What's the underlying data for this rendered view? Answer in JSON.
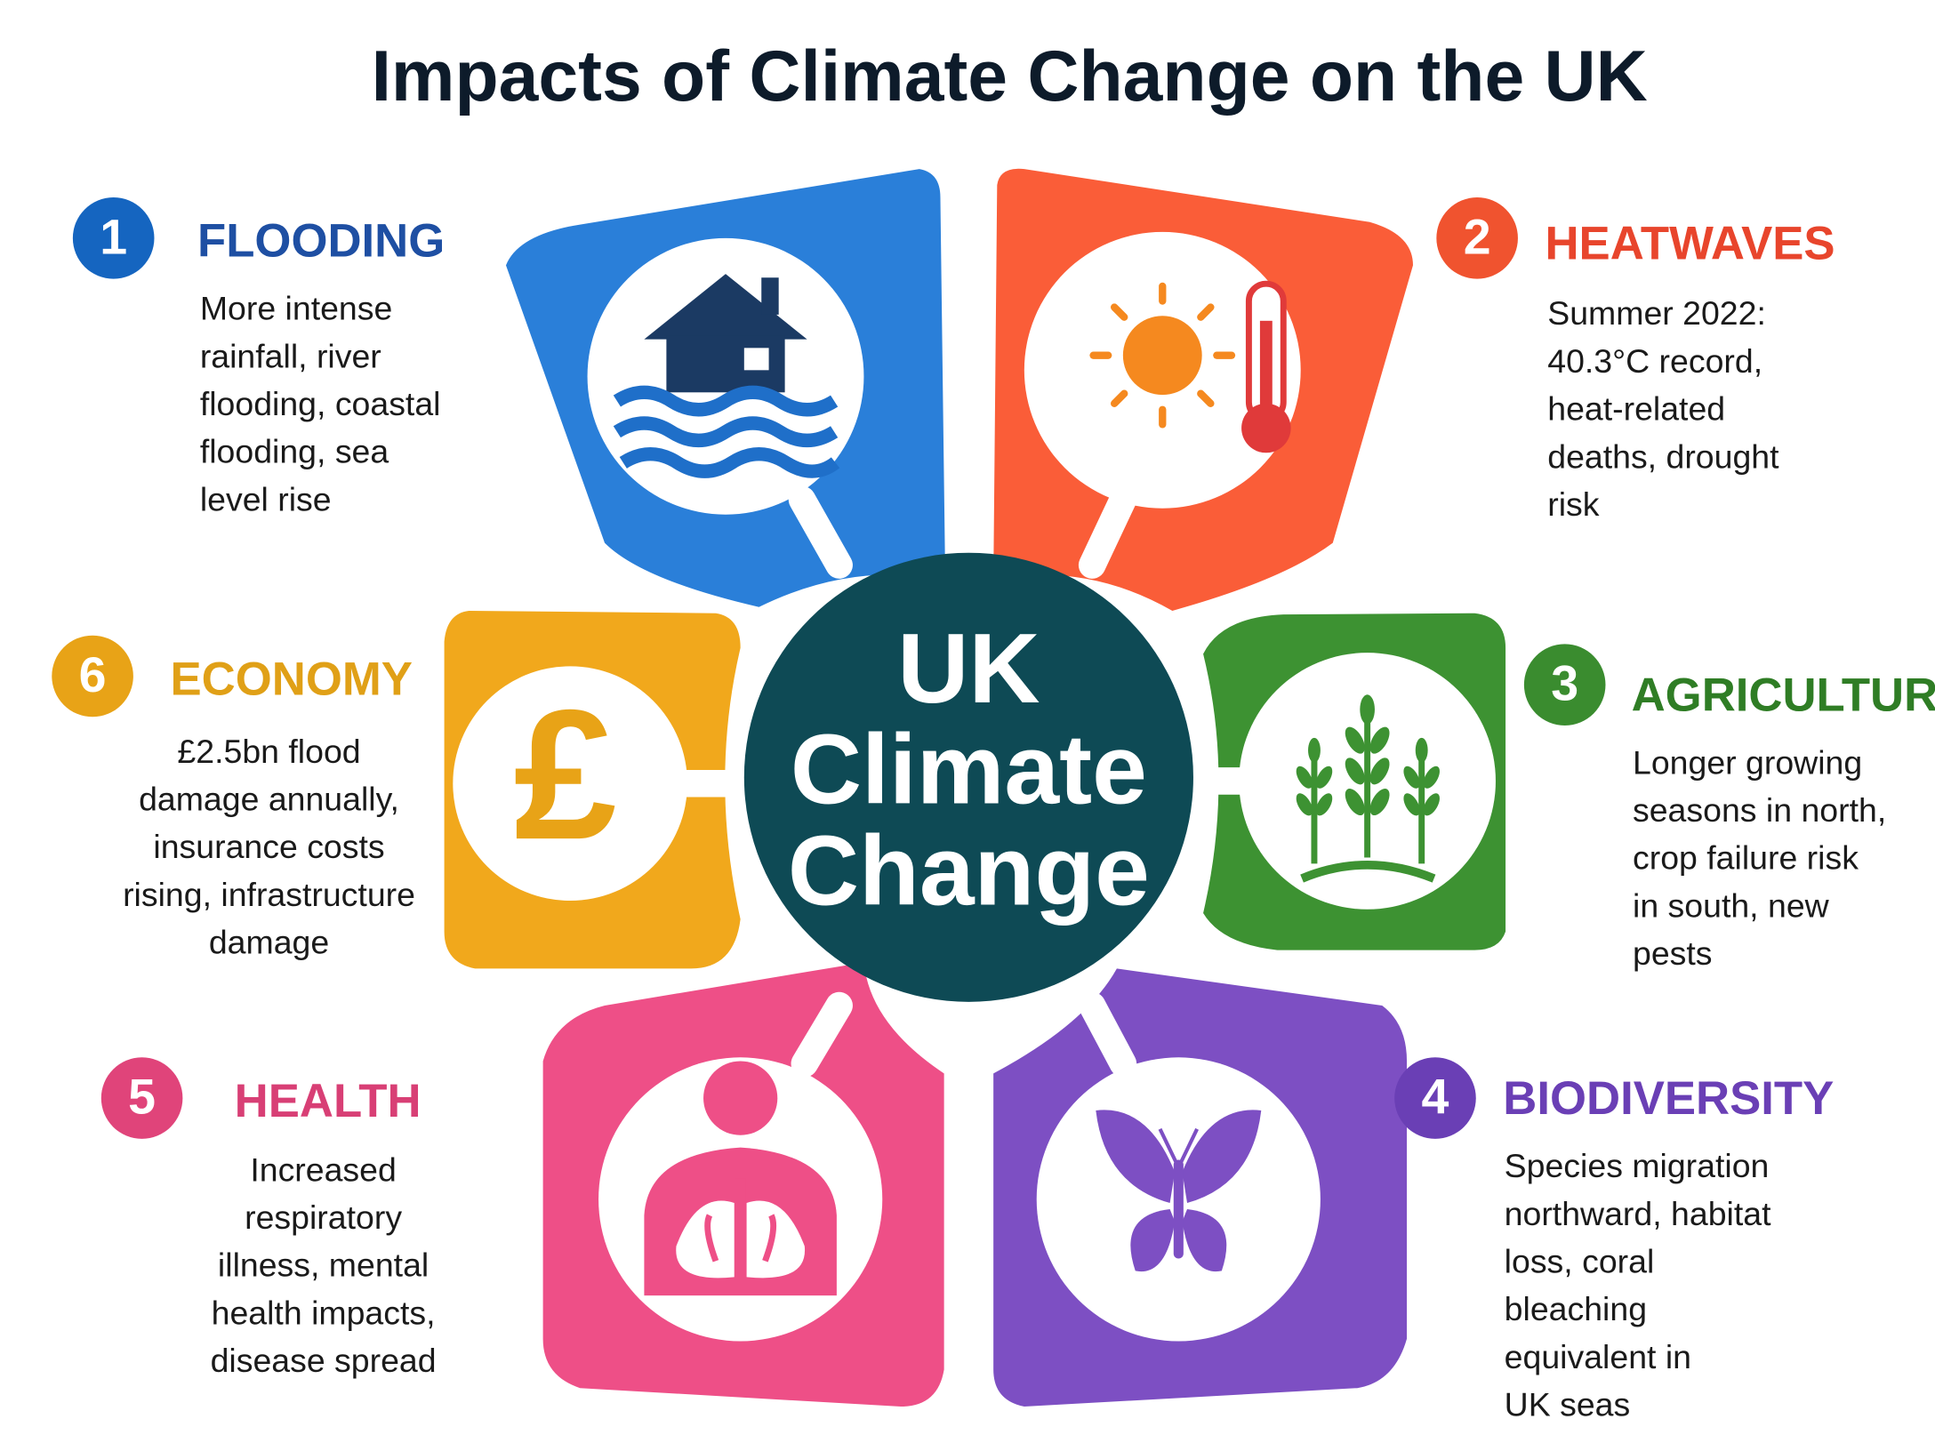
{
  "title": "Impacts of Climate Change on the UK",
  "center": {
    "lines": [
      "UK",
      "Climate",
      "Change"
    ]
  },
  "items": [
    {
      "number": 1,
      "title": "FLOODING",
      "lines": [
        "More intense",
        "rainfall, river",
        "flooding, coastal",
        "flooding, sea",
        "level rise"
      ]
    },
    {
      "number": 2,
      "title": "HEATWAVES",
      "lines": [
        "Summer 2022:",
        "40.3°C record,",
        "heat-related",
        "deaths, drought",
        "risk"
      ]
    },
    {
      "number": 3,
      "title": "AGRICULTURE",
      "lines": [
        "Longer growing",
        "seasons in north,",
        "crop failure risk",
        "in south, new",
        "pests"
      ]
    },
    {
      "number": 4,
      "title": "BIODIVERSITY",
      "lines": [
        "Species migration",
        "northward, habitat",
        "loss, coral",
        "bleaching",
        "equivalent in",
        "UK seas"
      ]
    },
    {
      "number": 5,
      "title": "HEALTH",
      "lines": [
        "Increased",
        "respiratory",
        "illness, mental",
        "health impacts,",
        "disease spread"
      ]
    },
    {
      "number": 6,
      "title": "ECONOMY",
      "icon": "£",
      "lines": [
        "£2.5bn flood",
        "damage annually,",
        "insurance costs",
        "rising, infrastructure",
        "damage"
      ]
    }
  ]
}
